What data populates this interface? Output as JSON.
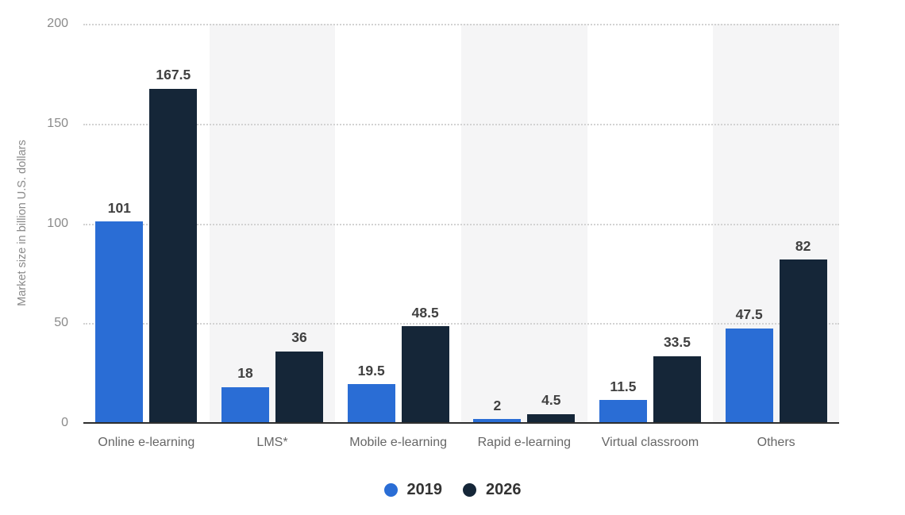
{
  "chart_data": {
    "type": "bar",
    "title": "",
    "xlabel": "",
    "ylabel": "Market size in billion U.S. dollars",
    "categories": [
      "Online e-learning",
      "LMS*",
      "Mobile e-learning",
      "Rapid e-learning",
      "Virtual classroom",
      "Others"
    ],
    "series": [
      {
        "name": "2019",
        "color": "#2a6dd5",
        "values": [
          101,
          18,
          19.5,
          2,
          11.5,
          47.5
        ]
      },
      {
        "name": "2026",
        "color": "#152638",
        "values": [
          167.5,
          36,
          48.5,
          4.5,
          33.5,
          82
        ]
      }
    ],
    "ylim": [
      0,
      200
    ],
    "yticks": [
      0,
      50,
      100,
      150,
      200
    ],
    "grid": "horizontal-dotted",
    "legend_position": "bottom-center",
    "banded_category_indexes": [
      1,
      3,
      5
    ]
  },
  "legend": {
    "items": [
      {
        "label": "2019",
        "color": "#2a6dd5"
      },
      {
        "label": "2026",
        "color": "#152638"
      }
    ]
  },
  "colors": {
    "background": "#ffffff",
    "band_fill": "#f5f5f6",
    "gridline": "#d2d2d2",
    "axis_line": "#2e2e2e",
    "tick_text": "#8a8a8a",
    "category_text": "#666666",
    "value_text": "#404040",
    "legend_text": "#333333"
  }
}
